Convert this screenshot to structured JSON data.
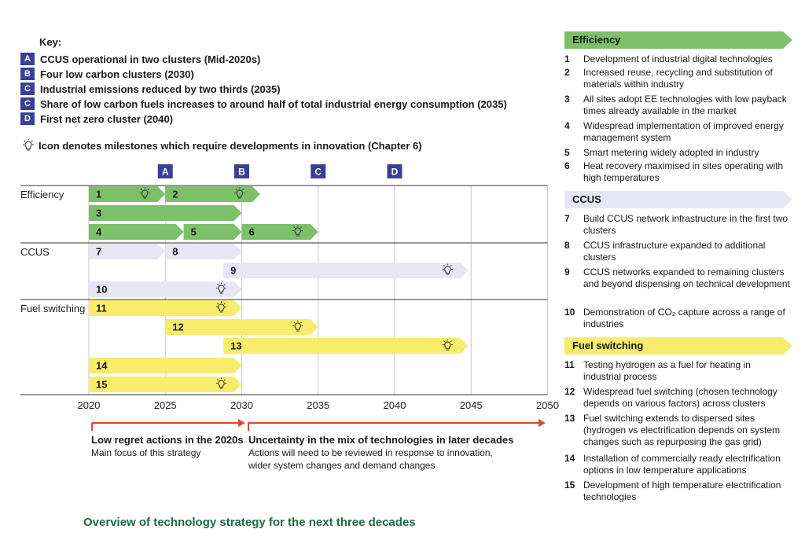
{
  "key": {
    "title": "Key:",
    "items": [
      {
        "badge": "A",
        "text": "CCUS operational in two clusters (Mid-2020s)"
      },
      {
        "badge": "B",
        "text": "Four low carbon clusters (2030)"
      },
      {
        "badge": "C",
        "text": "Industrial emissions reduced by two thirds (2035)"
      },
      {
        "badge": "C",
        "text": "Share of low carbon fuels increases to around half of total industrial energy consumption (2035)"
      },
      {
        "badge": "D",
        "text": "First net zero cluster (2040)"
      }
    ],
    "innovation_note": "Icon denotes milestones which require developments in innovation (Chapter 6)"
  },
  "chart_data": {
    "type": "timeline",
    "x_ticks": [
      "2020",
      "2025",
      "2030",
      "2035",
      "2040",
      "2045",
      "2050"
    ],
    "xlim": [
      2020,
      2050
    ],
    "milestones": [
      {
        "label": "A",
        "year": 2025
      },
      {
        "label": "B",
        "year": 2030
      },
      {
        "label": "C",
        "year": 2035
      },
      {
        "label": "D",
        "year": 2040
      }
    ],
    "categories": [
      "Efficiency",
      "CCUS",
      "Fuel switching"
    ],
    "bars": [
      {
        "id": "1",
        "category": "Efficiency",
        "start": 2020,
        "end": 2025,
        "innovation": true
      },
      {
        "id": "2",
        "category": "Efficiency",
        "start": 2025,
        "end": 2031.2,
        "innovation": true
      },
      {
        "id": "3",
        "category": "Efficiency",
        "start": 2020,
        "end": 2030,
        "innovation": false
      },
      {
        "id": "4",
        "category": "Efficiency",
        "start": 2020,
        "end": 2026.2,
        "innovation": false
      },
      {
        "id": "5",
        "category": "Efficiency",
        "start": 2026.2,
        "end": 2030,
        "innovation": false
      },
      {
        "id": "6",
        "category": "Efficiency",
        "start": 2030,
        "end": 2035,
        "innovation": true
      },
      {
        "id": "7",
        "category": "CCUS",
        "start": 2020,
        "end": 2025,
        "innovation": false
      },
      {
        "id": "8",
        "category": "CCUS",
        "start": 2025,
        "end": 2030,
        "innovation": false
      },
      {
        "id": "9",
        "category": "CCUS",
        "start": 2028.8,
        "end": 2044.8,
        "innovation": true
      },
      {
        "id": "10",
        "category": "CCUS",
        "start": 2020,
        "end": 2030,
        "innovation": true
      },
      {
        "id": "11",
        "category": "Fuel switching",
        "start": 2020,
        "end": 2030,
        "innovation": true
      },
      {
        "id": "12",
        "category": "Fuel switching",
        "start": 2025,
        "end": 2035,
        "innovation": true
      },
      {
        "id": "13",
        "category": "Fuel switching",
        "start": 2028.8,
        "end": 2044.8,
        "innovation": true
      },
      {
        "id": "14",
        "category": "Fuel switching",
        "start": 2020,
        "end": 2030,
        "innovation": false
      },
      {
        "id": "15",
        "category": "Fuel switching",
        "start": 2020,
        "end": 2030,
        "innovation": true
      }
    ],
    "colors": {
      "Efficiency": "#7cc06a",
      "CCUS": "#e6e6f5",
      "Fuel switching": "#f7ec6c",
      "milestone": "#3b3f95",
      "arrow": "#e0452e"
    }
  },
  "phases": [
    {
      "title": "Low regret actions in the 2020s",
      "text": "Main focus of this strategy"
    },
    {
      "title": "Uncertainty in the mix of technologies in later decades",
      "text1": "Actions will need to be reviewed in response to innovation,",
      "text2": "wider system changes and demand changes"
    }
  ],
  "caption": "Overview of technology strategy for the next three decades",
  "sections": {
    "efficiency": {
      "title": "Efficiency",
      "color": "#7cc06a",
      "items": [
        {
          "n": "1",
          "t": "Development of industrial digital technologies"
        },
        {
          "n": "2",
          "t": "Increased reuse, recycling and substitution of materials within industry"
        },
        {
          "n": "3",
          "t": "All sites adopt EE technologies with low payback times already available in the market"
        },
        {
          "n": "4",
          "t": "Widespread implementation of improved energy management system"
        },
        {
          "n": "5",
          "t": "Smart metering widely adopted in industry"
        },
        {
          "n": "6",
          "t": "Heat recovery maximised in sites operating with high temperatures"
        }
      ]
    },
    "ccus": {
      "title": "CCUS",
      "color": "#e6e6f5",
      "items": [
        {
          "n": "7",
          "t": "Build CCUS network infrastructure in the first two clusters"
        },
        {
          "n": "8",
          "t": "CCUS infrastructure expanded to additional clusters"
        },
        {
          "n": "9",
          "t": "CCUS networks expanded to remaining clusters and beyond dispensing on technical development"
        },
        {
          "n": "10",
          "t": "Demonstration of CO₂ capture across a range of industries"
        }
      ]
    },
    "fuel": {
      "title": "Fuel switching",
      "color": "#f7ec6c",
      "items": [
        {
          "n": "11",
          "t": "Testing hydrogen as a fuel for heating in industrial process"
        },
        {
          "n": "12",
          "t": "Widespread fuel switching (chosen technology depends on various factors) across clusters"
        },
        {
          "n": "13",
          "t": "Fuel switching extends to dispersed sites (hydrogen vs electrification depends on system changes such as repurposing the gas grid)"
        },
        {
          "n": "14",
          "t": "Installation of commercially ready electrification options in low temperature applications"
        },
        {
          "n": "15",
          "t": "Development of high temperature electrification technologies"
        }
      ]
    }
  }
}
